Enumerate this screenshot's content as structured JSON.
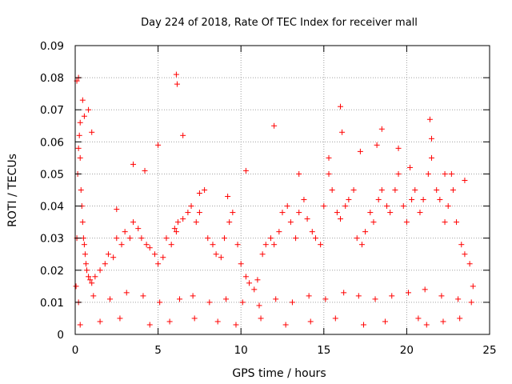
{
  "chart_data": {
    "type": "scatter",
    "title": "Day 224 of 2018, Rate Of TEC Index for receiver mall",
    "xlabel": "GPS time / hours",
    "ylabel": "ROTI / TECUs",
    "xlim": [
      0,
      25
    ],
    "ylim": [
      0,
      0.09
    ],
    "xticks": [
      "0",
      "5",
      "10",
      "15",
      "20",
      "25"
    ],
    "yticks": [
      "0",
      "0.01",
      "0.02",
      "0.03",
      "0.04",
      "0.05",
      "0.06",
      "0.07",
      "0.08",
      "0.09"
    ],
    "grid": true,
    "marker": "+",
    "color": "#ff0000",
    "series": [
      {
        "x": [
          0.05,
          0.1,
          0.15,
          0.2,
          0.25,
          0.3,
          0.35,
          0.4,
          0.45,
          0.5,
          0.55,
          0.6,
          0.65,
          0.7,
          0.8,
          0.9,
          1.0,
          1.2,
          1.5,
          1.8,
          2.0,
          2.3,
          2.5,
          2.8,
          3.0,
          3.3,
          3.5,
          3.8,
          4.0,
          4.3,
          4.5,
          4.8,
          5.0,
          5.3,
          5.5,
          5.8,
          6.0,
          6.1,
          6.2,
          6.5,
          6.8,
          7.0,
          7.3,
          7.5,
          7.8,
          8.0,
          8.3,
          8.5,
          8.8,
          9.0,
          9.3,
          9.5,
          9.8,
          10.0,
          10.3,
          10.5,
          10.8,
          11.0,
          11.3,
          11.5,
          11.8,
          12.0,
          12.3,
          12.5,
          12.8,
          13.0,
          13.3,
          13.5,
          13.8,
          14.0,
          14.3,
          14.5,
          14.8,
          15.0,
          15.3,
          15.5,
          15.8,
          16.0,
          16.3,
          16.5,
          16.8,
          17.0,
          17.3,
          17.5,
          17.8,
          18.0,
          18.3,
          18.5,
          18.8,
          19.0,
          19.3,
          19.5,
          19.8,
          20.0,
          20.3,
          20.5,
          20.8,
          21.0,
          21.3,
          21.5,
          21.8,
          22.0,
          22.3,
          22.5,
          22.8,
          23.0,
          23.3,
          23.5,
          23.8,
          24.0,
          0.1,
          0.2,
          0.3,
          0.45,
          0.55,
          0.8,
          1.0,
          2.5,
          3.5,
          4.2,
          5.0,
          6.1,
          6.15,
          6.5,
          7.5,
          9.2,
          10.3,
          12.0,
          13.5,
          15.3,
          16.0,
          16.1,
          17.2,
          18.2,
          18.5,
          19.5,
          20.2,
          21.4,
          21.5,
          22.3,
          22.7,
          23.5,
          0.3,
          1.5,
          2.7,
          4.5,
          5.7,
          7.2,
          8.6,
          9.7,
          11.2,
          12.7,
          14.2,
          15.7,
          17.4,
          18.7,
          20.7,
          21.2,
          22.2,
          23.2,
          0.2,
          1.1,
          2.1,
          3.1,
          4.1,
          5.1,
          6.3,
          7.1,
          8.1,
          9.1,
          10.1,
          11.1,
          12.1,
          13.1,
          14.1,
          15.1,
          16.2,
          17.1,
          18.1,
          19.1,
          20.1,
          21.1,
          22.1,
          23.1,
          23.9
        ],
        "y": [
          0.015,
          0.03,
          0.05,
          0.058,
          0.062,
          0.055,
          0.045,
          0.04,
          0.035,
          0.03,
          0.028,
          0.025,
          0.022,
          0.02,
          0.018,
          0.017,
          0.016,
          0.018,
          0.02,
          0.022,
          0.025,
          0.024,
          0.03,
          0.028,
          0.032,
          0.03,
          0.035,
          0.033,
          0.03,
          0.028,
          0.027,
          0.025,
          0.022,
          0.024,
          0.03,
          0.028,
          0.033,
          0.032,
          0.035,
          0.036,
          0.038,
          0.04,
          0.035,
          0.038,
          0.045,
          0.03,
          0.028,
          0.025,
          0.024,
          0.03,
          0.035,
          0.038,
          0.028,
          0.022,
          0.018,
          0.016,
          0.014,
          0.017,
          0.025,
          0.028,
          0.03,
          0.028,
          0.032,
          0.038,
          0.04,
          0.035,
          0.03,
          0.038,
          0.042,
          0.036,
          0.032,
          0.03,
          0.028,
          0.04,
          0.05,
          0.045,
          0.038,
          0.036,
          0.04,
          0.042,
          0.045,
          0.03,
          0.028,
          0.032,
          0.038,
          0.035,
          0.042,
          0.045,
          0.04,
          0.038,
          0.045,
          0.05,
          0.04,
          0.035,
          0.042,
          0.045,
          0.038,
          0.042,
          0.05,
          0.055,
          0.045,
          0.042,
          0.035,
          0.04,
          0.045,
          0.035,
          0.028,
          0.025,
          0.022,
          0.015,
          0.079,
          0.08,
          0.066,
          0.073,
          0.068,
          0.07,
          0.063,
          0.039,
          0.053,
          0.051,
          0.059,
          0.081,
          0.078,
          0.062,
          0.044,
          0.043,
          0.051,
          0.065,
          0.05,
          0.055,
          0.071,
          0.063,
          0.057,
          0.059,
          0.064,
          0.058,
          0.052,
          0.067,
          0.061,
          0.05,
          0.05,
          0.048,
          0.003,
          0.004,
          0.005,
          0.003,
          0.004,
          0.005,
          0.004,
          0.003,
          0.005,
          0.003,
          0.004,
          0.005,
          0.003,
          0.004,
          0.005,
          0.003,
          0.004,
          0.005,
          0.01,
          0.012,
          0.011,
          0.013,
          0.012,
          0.01,
          0.011,
          0.012,
          0.01,
          0.011,
          0.01,
          0.009,
          0.011,
          0.01,
          0.012,
          0.011,
          0.013,
          0.012,
          0.011,
          0.012,
          0.013,
          0.014,
          0.012,
          0.011,
          0.01
        ]
      }
    ]
  }
}
